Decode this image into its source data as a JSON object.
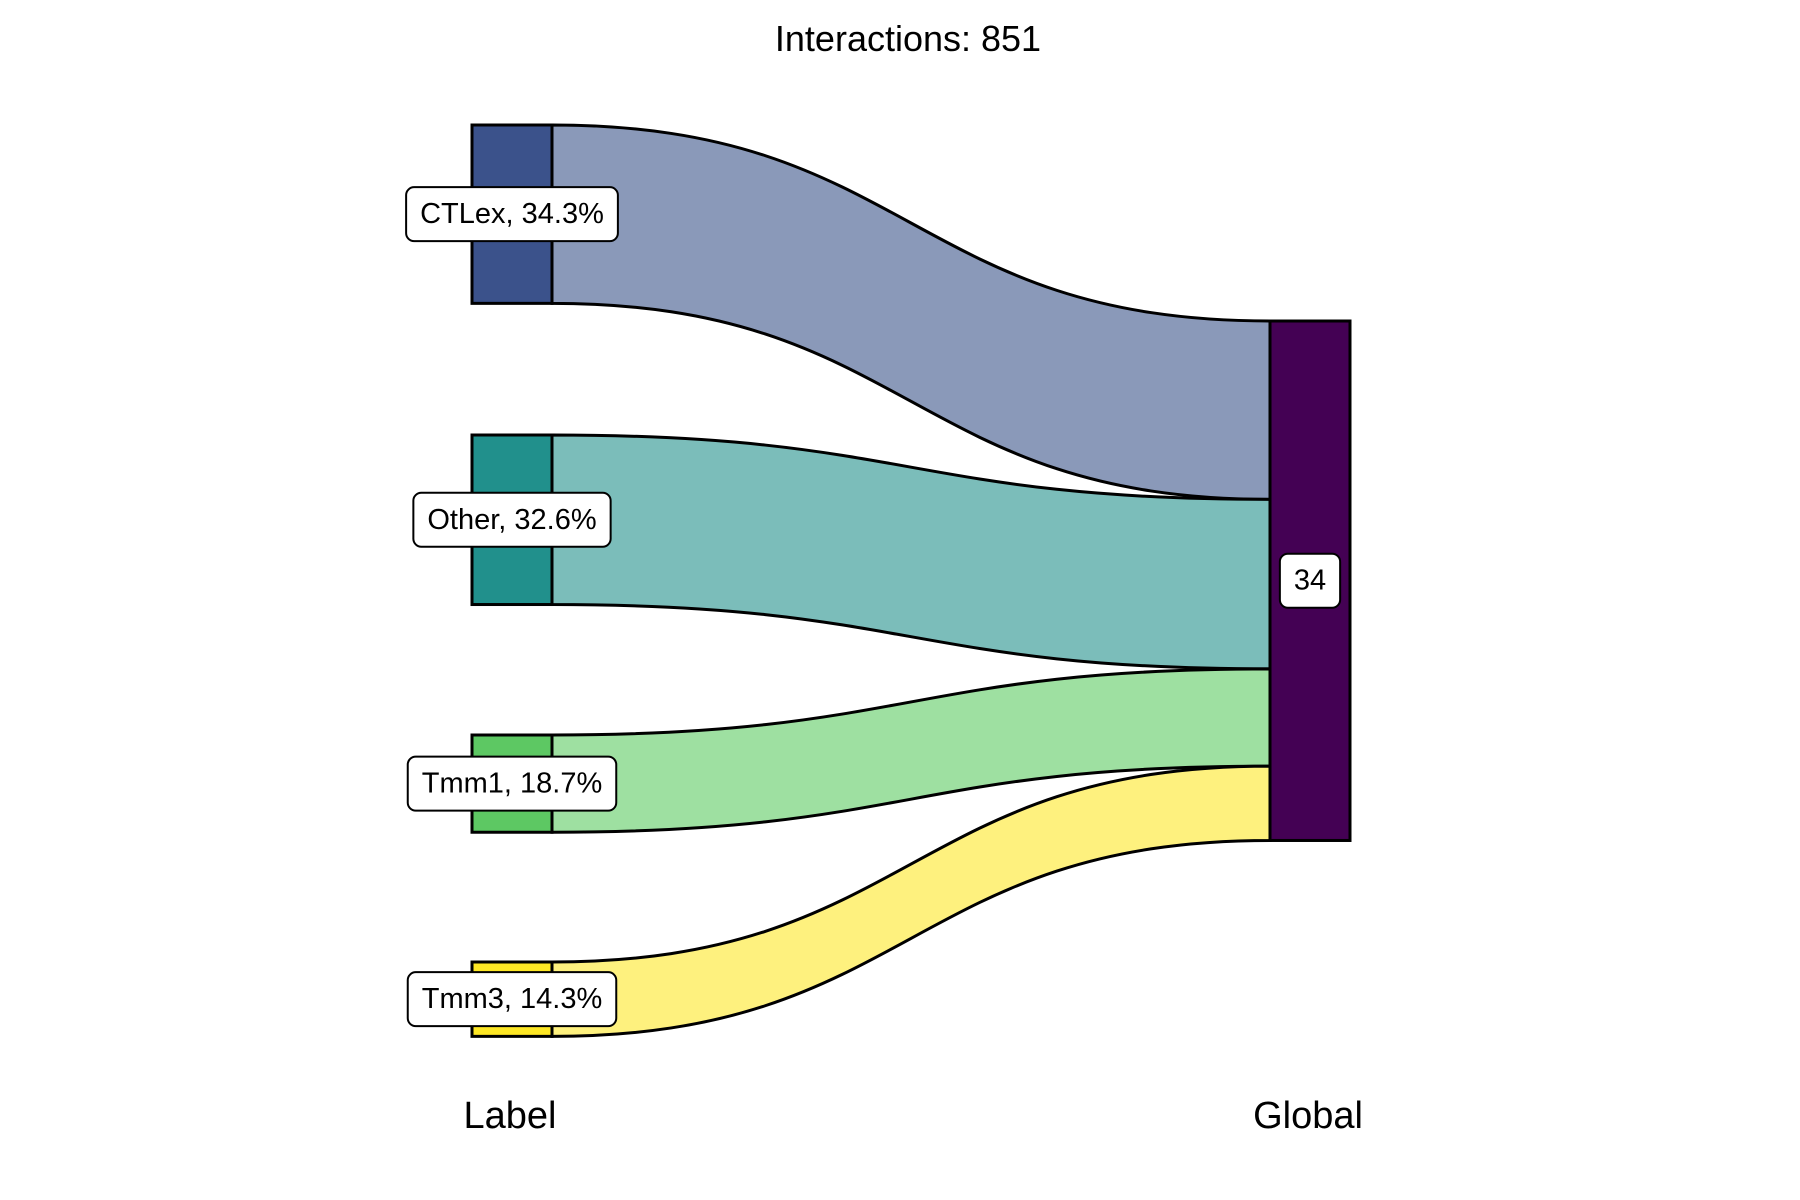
{
  "chart_data": {
    "type": "sankey",
    "title": "Interactions: 851",
    "axes": [
      "Label",
      "Global"
    ],
    "left_nodes": [
      {
        "name": "CTLex",
        "label": "CTLex, 34.3%",
        "percent": 34.3,
        "color": "#3b528b",
        "flow_color": "#8a99b9"
      },
      {
        "name": "Other",
        "label": "Other, 32.6%",
        "percent": 32.6,
        "color": "#21908c",
        "flow_color": "#7bbdba"
      },
      {
        "name": "Tmm1",
        "label": "Tmm1, 18.7%",
        "percent": 18.7,
        "color": "#5dc863",
        "flow_color": "#9ee0a1"
      },
      {
        "name": "Tmm3",
        "label": "Tmm3, 14.3%",
        "percent": 14.3,
        "color": "#fde725",
        "flow_color": "#fef17e"
      }
    ],
    "right_nodes": [
      {
        "name": "34",
        "label": "34",
        "color": "#440154"
      }
    ],
    "links": [
      {
        "source": "CTLex",
        "target": "34",
        "percent": 34.3
      },
      {
        "source": "Other",
        "target": "34",
        "percent": 32.6
      },
      {
        "source": "Tmm1",
        "target": "34",
        "percent": 18.7
      },
      {
        "source": "Tmm3",
        "target": "34",
        "percent": 14.3
      }
    ]
  }
}
